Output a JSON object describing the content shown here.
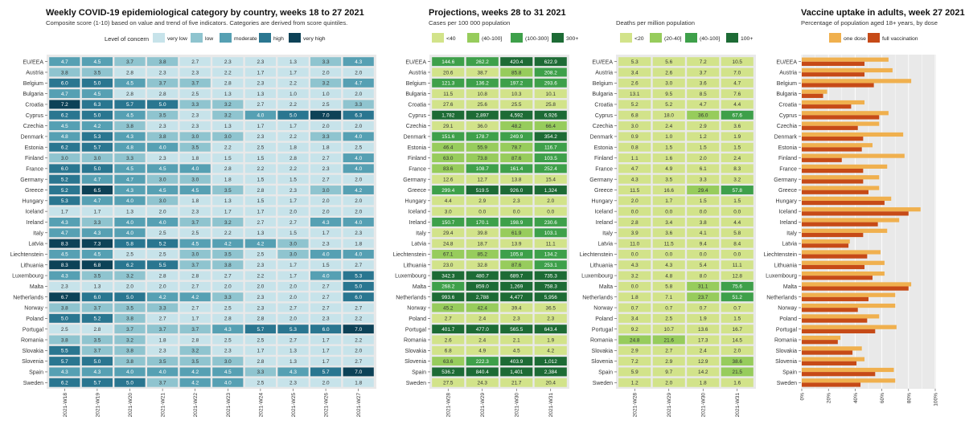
{
  "colors": {
    "concern": [
      "#c7e3ea",
      "#8fc4cf",
      "#56a0b3",
      "#2a7690",
      "#0d4257"
    ],
    "proj": [
      "#d2e38a",
      "#97cc5c",
      "#3ea04a",
      "#1d6b35"
    ],
    "one_dose": "#f0b04e",
    "full_vac": "#c64a17",
    "panel_bg": "#e9e9e9",
    "grid": "#ffffff"
  },
  "countries": [
    "EU/EEA",
    "Austria",
    "Belgium",
    "Bulgaria",
    "Croatia",
    "Cyprus",
    "Czechia",
    "Denmark",
    "Estonia",
    "Finland",
    "France",
    "Germany",
    "Greece",
    "Hungary",
    "Iceland",
    "Ireland",
    "Italy",
    "Latvia",
    "Liechtenstein",
    "Lithuania",
    "Luxembourg",
    "Malta",
    "Netherlands",
    "Norway",
    "Poland",
    "Portugal",
    "Romania",
    "Slovakia",
    "Slovenia",
    "Spain",
    "Sweden"
  ],
  "chart_data": [
    {
      "type": "heatmap",
      "id": "category",
      "title": "Weekly COVID-19 epidemiological category by country, weeks 18 to 27 2021",
      "subtitle": "Composite score (1-10) based on value and trend of five indicators. Categories are derived from score quintiles.",
      "legend_title": "Level of concern",
      "legend": [
        "very low",
        "low",
        "moderate",
        "high",
        "very high"
      ],
      "weeks": [
        "2021-W18",
        "2021-W19",
        "2021-W20",
        "2021-W21",
        "2021-W22",
        "2021-W23",
        "2021-W24",
        "2021-W25",
        "2021-W26",
        "2021-W27"
      ],
      "values": [
        [
          "4.7",
          "4.5",
          "3.7",
          "3.8",
          "2.7",
          "2.3",
          "2.3",
          "1.3",
          "3.3",
          "4.3"
        ],
        [
          "3.8",
          "3.5",
          "2.8",
          "2.3",
          "2.3",
          "2.2",
          "1.7",
          "1.7",
          "2.0",
          "2.0"
        ],
        [
          "6.0",
          "5.0",
          "4.5",
          "3.7",
          "3.7",
          "2.8",
          "2.3",
          "2.2",
          "3.2",
          "4.7"
        ],
        [
          "4.7",
          "4.5",
          "2.8",
          "2.8",
          "2.5",
          "1.3",
          "1.3",
          "1.0",
          "1.0",
          "2.0"
        ],
        [
          "7.2",
          "6.3",
          "5.7",
          "5.0",
          "3.3",
          "3.2",
          "2.7",
          "2.2",
          "2.5",
          "3.3"
        ],
        [
          "6.2",
          "5.0",
          "4.5",
          "3.5",
          "2.3",
          "3.2",
          "4.0",
          "5.0",
          "7.0",
          "6.3"
        ],
        [
          "4.5",
          "4.2",
          "3.8",
          "2.3",
          "2.3",
          "1.3",
          "1.7",
          "1.7",
          "2.0",
          "2.0"
        ],
        [
          "4.8",
          "5.3",
          "4.3",
          "3.8",
          "3.0",
          "3.0",
          "2.3",
          "2.2",
          "3.3",
          "4.0"
        ],
        [
          "6.2",
          "5.7",
          "4.8",
          "4.0",
          "3.5",
          "2.2",
          "2.5",
          "1.8",
          "1.8",
          "2.5"
        ],
        [
          "3.0",
          "3.0",
          "3.3",
          "2.3",
          "1.8",
          "1.5",
          "1.5",
          "2.8",
          "2.7",
          "4.0"
        ],
        [
          "6.0",
          "5.0",
          "4.5",
          "4.5",
          "4.0",
          "2.8",
          "2.2",
          "2.2",
          "2.3",
          "4.0"
        ],
        [
          "5.2",
          "4.7",
          "4.7",
          "3.0",
          "3.0",
          "1.8",
          "1.5",
          "1.5",
          "2.7",
          "2.0"
        ],
        [
          "5.2",
          "6.5",
          "4.3",
          "4.5",
          "4.5",
          "3.5",
          "2.8",
          "2.3",
          "3.0",
          "4.2"
        ],
        [
          "5.3",
          "4.7",
          "4.0",
          "3.0",
          "1.8",
          "1.3",
          "1.5",
          "1.7",
          "2.0",
          "2.0"
        ],
        [
          "1.7",
          "1.7",
          "1.3",
          "2.0",
          "2.3",
          "1.7",
          "1.7",
          "2.0",
          "2.0",
          "2.0"
        ],
        [
          "4.3",
          "3.3",
          "4.0",
          "4.0",
          "3.7",
          "3.2",
          "2.7",
          "2.7",
          "4.3",
          "4.0"
        ],
        [
          "4.7",
          "4.3",
          "4.0",
          "2.5",
          "2.5",
          "2.2",
          "1.3",
          "1.5",
          "1.7",
          "2.3"
        ],
        [
          "8.3",
          "7.3",
          "5.8",
          "5.2",
          "4.5",
          "4.2",
          "4.2",
          "3.0",
          "2.3",
          "1.8"
        ],
        [
          "4.5",
          "4.5",
          "2.5",
          "2.5",
          "3.0",
          "3.5",
          "2.5",
          "3.0",
          "4.0",
          "4.0"
        ],
        [
          "8.3",
          "6.8",
          "6.2",
          "5.5",
          "3.7",
          "3.8",
          "2.3",
          "1.7",
          "1.5",
          "2.7"
        ],
        [
          "4.3",
          "3.5",
          "3.2",
          "2.8",
          "2.8",
          "2.7",
          "2.2",
          "1.7",
          "4.0",
          "5.3"
        ],
        [
          "2.3",
          "1.3",
          "2.0",
          "2.0",
          "2.7",
          "2.0",
          "2.0",
          "2.0",
          "2.7",
          "5.0"
        ],
        [
          "6.7",
          "6.0",
          "5.0",
          "4.2",
          "4.2",
          "3.3",
          "2.3",
          "2.0",
          "2.7",
          "6.0"
        ],
        [
          "3.8",
          "3.7",
          "3.5",
          "3.3",
          "2.7",
          "2.5",
          "2.3",
          "2.7",
          "2.7",
          "2.7"
        ],
        [
          "5.0",
          "5.2",
          "3.8",
          "2.7",
          "1.7",
          "2.8",
          "2.8",
          "2.0",
          "2.3",
          "2.2"
        ],
        [
          "2.5",
          "2.8",
          "3.7",
          "3.7",
          "3.7",
          "4.3",
          "5.7",
          "5.3",
          "6.0",
          "7.0"
        ],
        [
          "3.8",
          "3.5",
          "3.2",
          "1.8",
          "2.8",
          "2.5",
          "2.5",
          "2.7",
          "1.7",
          "2.2"
        ],
        [
          "5.5",
          "3.7",
          "3.8",
          "2.3",
          "3.2",
          "2.3",
          "1.7",
          "1.3",
          "1.7",
          "2.0"
        ],
        [
          "5.7",
          "5.0",
          "3.8",
          "3.5",
          "3.5",
          "3.0",
          "2.8",
          "1.3",
          "1.7",
          "2.7"
        ],
        [
          "4.3",
          "4.3",
          "4.0",
          "4.0",
          "4.2",
          "4.5",
          "3.3",
          "4.3",
          "5.7",
          "7.0"
        ],
        [
          "6.2",
          "5.7",
          "5.0",
          "3.7",
          "4.2",
          "4.0",
          "2.5",
          "2.3",
          "2.0",
          "1.8"
        ]
      ]
    },
    {
      "type": "heatmap",
      "id": "cases",
      "title": "Projections, weeks 28 to 31 2021",
      "subtitle": "Cases per 100 000 population",
      "legend": [
        "<40",
        "(40-100]",
        "(100-300]",
        "300+"
      ],
      "weeks": [
        "2021-W28",
        "2021-W29",
        "2021-W30",
        "2021-W31"
      ],
      "values": [
        [
          "144.6",
          "262.2",
          "420.4",
          "622.9"
        ],
        [
          "20.6",
          "38.7",
          "85.8",
          "208.2"
        ],
        [
          "121.3",
          "136.2",
          "197.2",
          "293.6"
        ],
        [
          "11.5",
          "10.8",
          "10.3",
          "10.1"
        ],
        [
          "27.6",
          "25.6",
          "25.5",
          "25.8"
        ],
        [
          "1,782",
          "2,897",
          "4,592",
          "6,926"
        ],
        [
          "29.1",
          "36.0",
          "48.2",
          "66.4"
        ],
        [
          "151.6",
          "178.7",
          "249.9",
          "354.2"
        ],
        [
          "46.4",
          "55.9",
          "78.7",
          "116.7"
        ],
        [
          "63.0",
          "73.8",
          "87.6",
          "103.5"
        ],
        [
          "83.6",
          "108.7",
          "161.4",
          "252.4"
        ],
        [
          "12.6",
          "12.7",
          "13.8",
          "15.4"
        ],
        [
          "299.4",
          "519.5",
          "926.0",
          "1,324"
        ],
        [
          "4.4",
          "2.9",
          "2.3",
          "2.0"
        ],
        [
          "3.0",
          "0.0",
          "0.0",
          "0.0"
        ],
        [
          "150.7",
          "170.1",
          "198.9",
          "230.6"
        ],
        [
          "29.4",
          "39.8",
          "61.9",
          "103.1"
        ],
        [
          "24.8",
          "18.7",
          "13.9",
          "11.1"
        ],
        [
          "67.1",
          "85.2",
          "105.8",
          "134.2"
        ],
        [
          "23.0",
          "32.8",
          "87.6",
          "253.1"
        ],
        [
          "342.3",
          "480.7",
          "689.7",
          "735.3"
        ],
        [
          "268.2",
          "859.0",
          "1,269",
          "758.3"
        ],
        [
          "993.6",
          "2,788",
          "4,477",
          "5,956"
        ],
        [
          "45.2",
          "42.4",
          "39.4",
          "36.5"
        ],
        [
          "2.7",
          "2.4",
          "2.3",
          "2.3"
        ],
        [
          "401.7",
          "477.0",
          "565.5",
          "643.4"
        ],
        [
          "2.6",
          "2.4",
          "2.1",
          "1.9"
        ],
        [
          "6.8",
          "4.9",
          "4.5",
          "4.2"
        ],
        [
          "63.6",
          "222.3",
          "403.9",
          "1,012"
        ],
        [
          "536.2",
          "840.4",
          "1,401",
          "2,384"
        ],
        [
          "27.5",
          "24.3",
          "21.7",
          "20.4"
        ]
      ]
    },
    {
      "type": "heatmap",
      "id": "deaths",
      "title": "",
      "subtitle": "Deaths per million population",
      "legend": [
        "<20",
        "(20-40]",
        "(40-100]",
        "100+"
      ],
      "weeks": [
        "2021-W28",
        "2021-W29",
        "2021-W30",
        "2021-W31"
      ],
      "values": [
        [
          "5.3",
          "5.6",
          "7.2",
          "10.5"
        ],
        [
          "3.4",
          "2.6",
          "3.7",
          "7.0"
        ],
        [
          "2.6",
          "3.0",
          "3.6",
          "4.7"
        ],
        [
          "13.1",
          "9.5",
          "8.5",
          "7.6"
        ],
        [
          "5.2",
          "5.2",
          "4.7",
          "4.4"
        ],
        [
          "6.8",
          "18.0",
          "36.0",
          "67.6"
        ],
        [
          "3.0",
          "2.4",
          "2.9",
          "3.6"
        ],
        [
          "0.9",
          "1.0",
          "1.2",
          "1.9"
        ],
        [
          "0.8",
          "1.5",
          "1.5",
          "1.5"
        ],
        [
          "1.1",
          "1.6",
          "2.0",
          "2.4"
        ],
        [
          "4.7",
          "4.9",
          "6.1",
          "8.3"
        ],
        [
          "4.3",
          "3.5",
          "3.3",
          "3.2"
        ],
        [
          "11.5",
          "16.6",
          "29.4",
          "57.8"
        ],
        [
          "2.0",
          "1.7",
          "1.5",
          "1.5"
        ],
        [
          "0.0",
          "0.0",
          "0.0",
          "0.0"
        ],
        [
          "2.8",
          "3.4",
          "3.8",
          "4.4"
        ],
        [
          "3.9",
          "3.6",
          "4.1",
          "5.8"
        ],
        [
          "11.0",
          "11.5",
          "9.4",
          "8.4"
        ],
        [
          "0.0",
          "0.0",
          "0.0",
          "0.0"
        ],
        [
          "4.3",
          "4.3",
          "5.4",
          "11.1"
        ],
        [
          "3.2",
          "4.8",
          "8.0",
          "12.8"
        ],
        [
          "0.0",
          "5.8",
          "31.1",
          "75.6"
        ],
        [
          "1.8",
          "7.1",
          "23.7",
          "51.2"
        ],
        [
          "0.7",
          "0.7",
          "0.7",
          "0.7"
        ],
        [
          "3.4",
          "2.5",
          "1.9",
          "1.5"
        ],
        [
          "9.2",
          "10.7",
          "13.6",
          "16.7"
        ],
        [
          "24.8",
          "21.6",
          "17.3",
          "14.5"
        ],
        [
          "2.9",
          "2.7",
          "2.4",
          "2.0"
        ],
        [
          "7.2",
          "2.9",
          "12.9",
          "38.6"
        ],
        [
          "5.9",
          "9.7",
          "14.2",
          "21.5"
        ],
        [
          "1.2",
          "2.0",
          "1.8",
          "1.6"
        ]
      ]
    },
    {
      "type": "bar",
      "id": "vaccine",
      "title": "Vaccine uptake in adults, week 27 2021",
      "subtitle": "Percentage of population aged 18+ years, by dose",
      "legend": [
        "one dose",
        "full vaccination"
      ],
      "xlim": [
        0,
        100
      ],
      "xticks": [
        "0%",
        "20%",
        "40%",
        "60%",
        "80%",
        "100%"
      ],
      "series": [
        {
          "name": "one dose",
          "values": [
            65,
            68,
            82,
            19,
            47,
            65,
            58,
            76,
            53,
            77,
            64,
            58,
            58,
            67,
            89,
            73,
            64,
            36,
            59,
            62,
            62,
            82,
            70,
            70,
            58,
            71,
            29,
            45,
            47,
            69,
            70
          ]
        },
        {
          "name": "full vaccination",
          "values": [
            47,
            47,
            54,
            16,
            37,
            58,
            42,
            46,
            45,
            30,
            46,
            46,
            50,
            62,
            80,
            57,
            46,
            35,
            49,
            47,
            53,
            80,
            50,
            42,
            49,
            55,
            27,
            38,
            41,
            55,
            44
          ]
        }
      ]
    }
  ]
}
